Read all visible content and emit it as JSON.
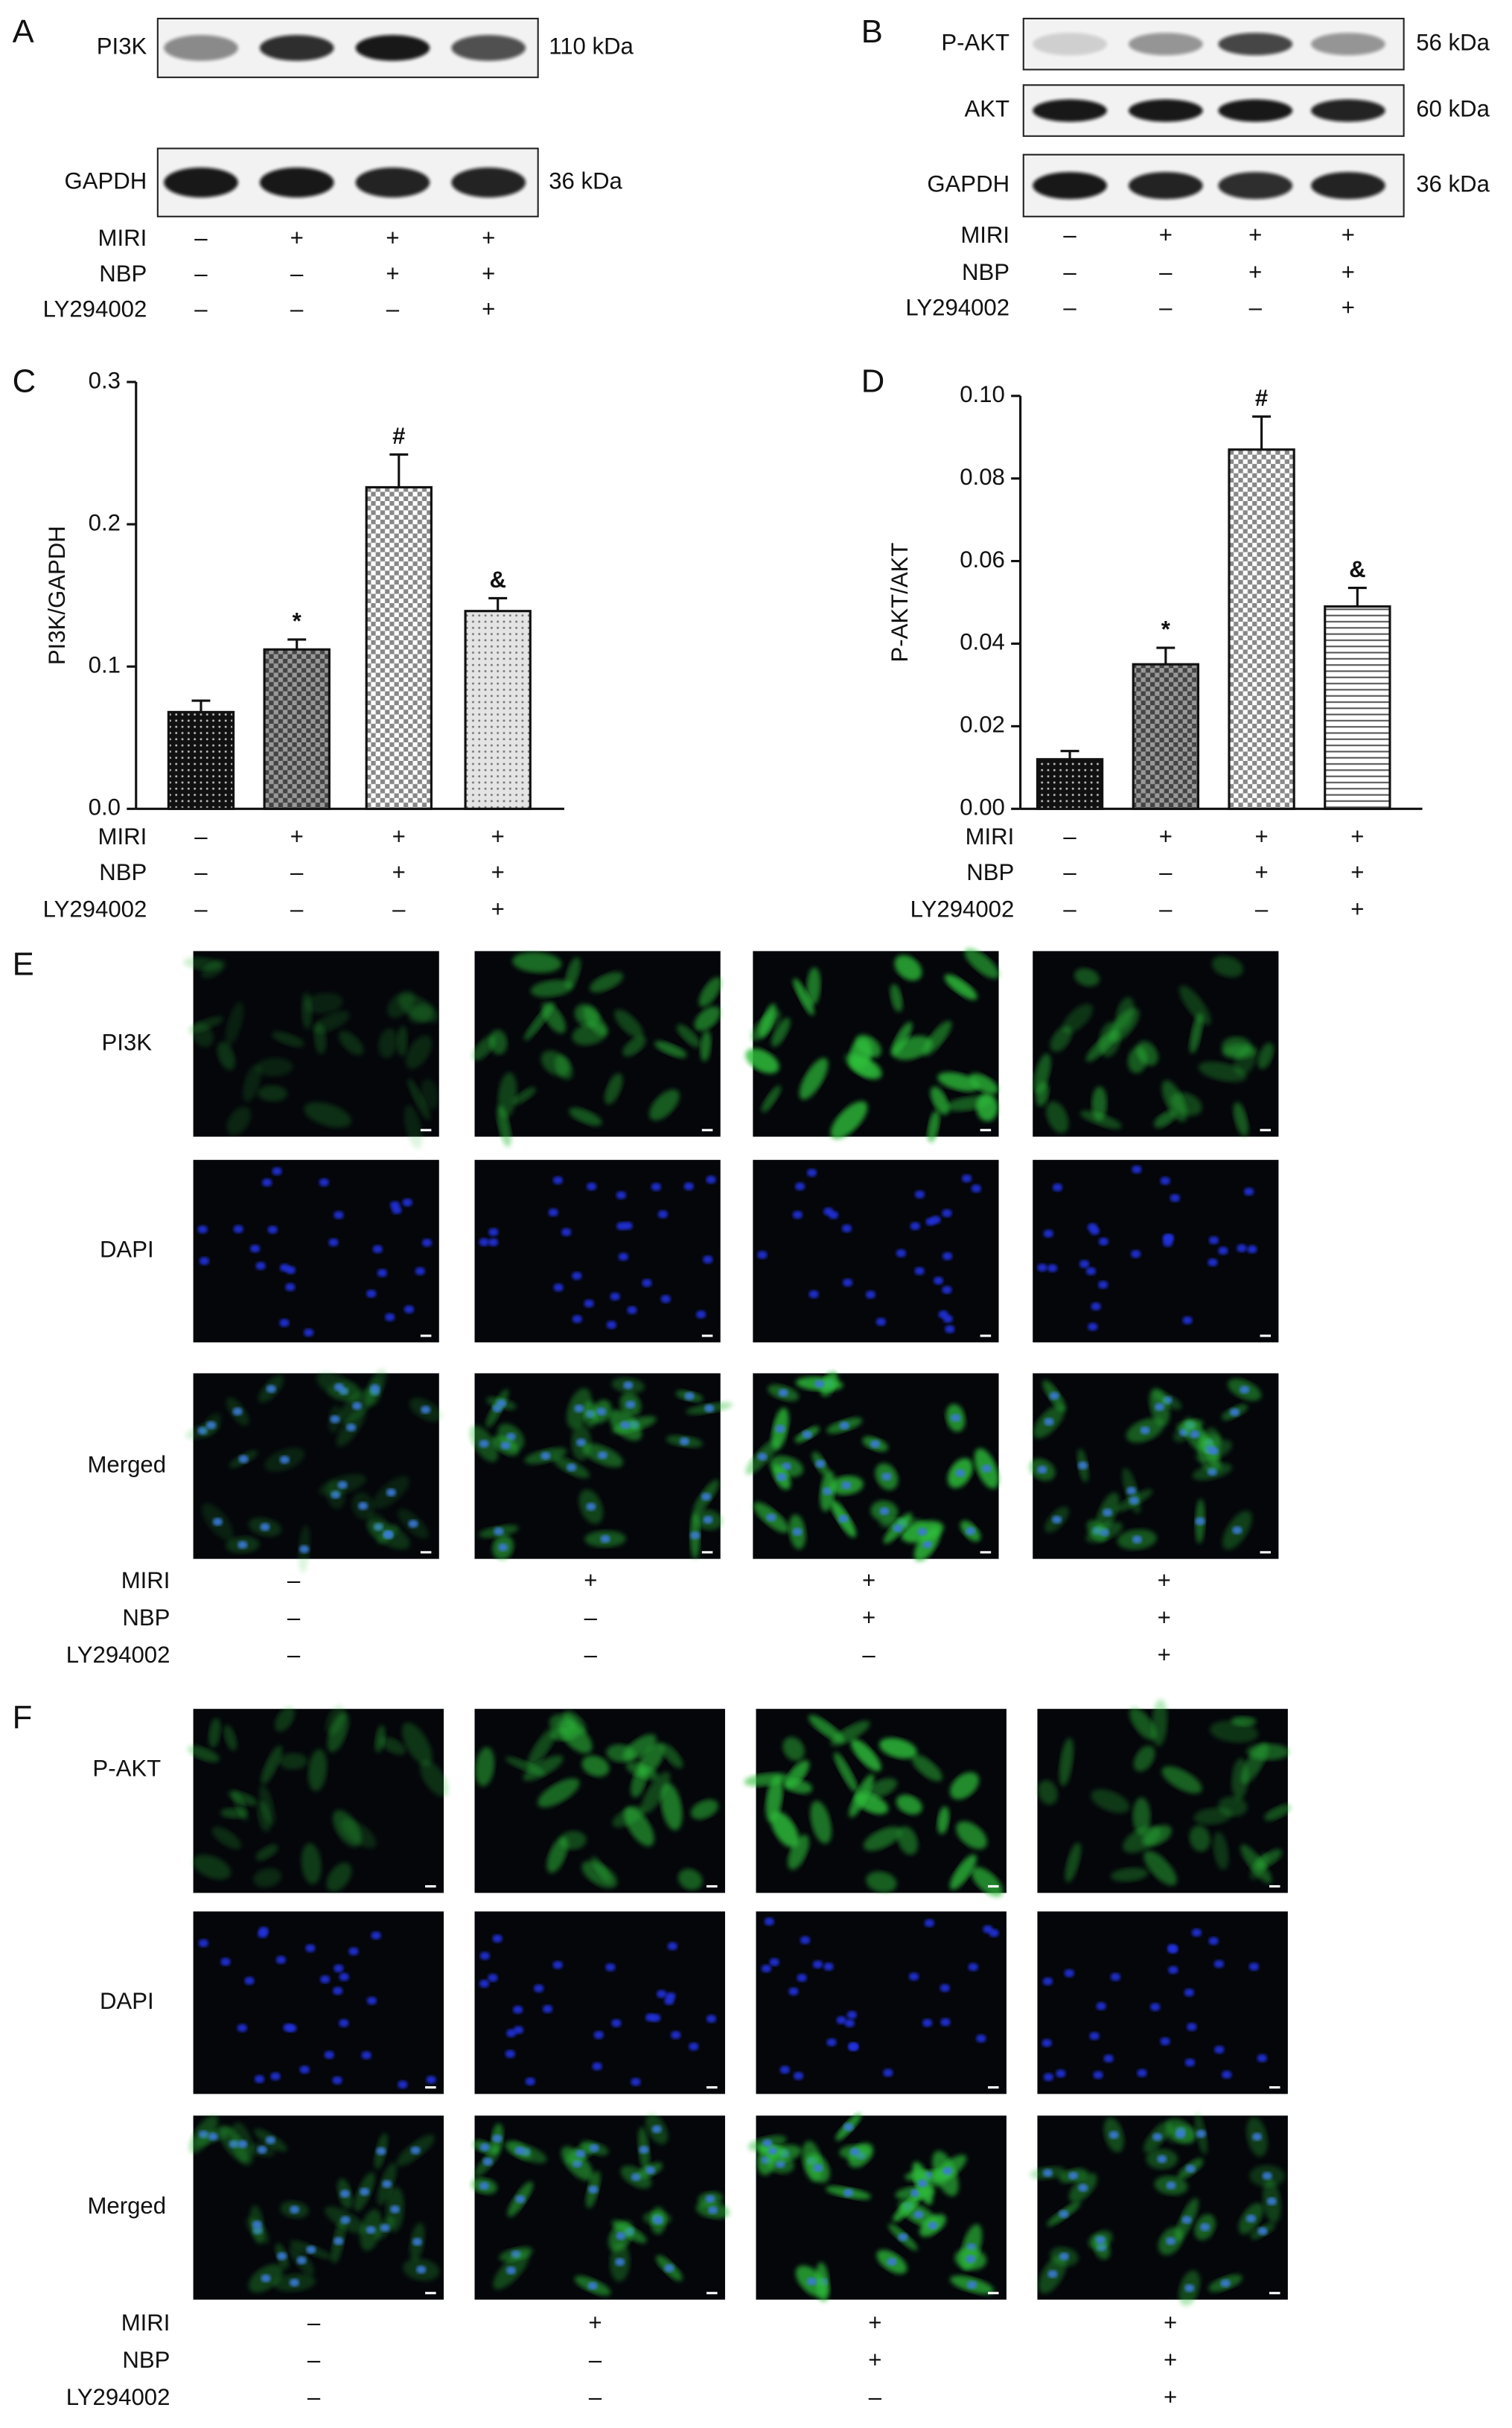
{
  "panels": {
    "A": {
      "label": "A",
      "blots": [
        {
          "name": "PI3K",
          "size": "110 kDa"
        },
        {
          "name": "GAPDH",
          "size": "36 kDa"
        }
      ],
      "conditions": [
        {
          "name": "MIRI",
          "signs": [
            "–",
            "+",
            "+",
            "+"
          ]
        },
        {
          "name": "NBP",
          "signs": [
            "–",
            "–",
            "+",
            "+"
          ]
        },
        {
          "name": "LY294002",
          "signs": [
            "–",
            "–",
            "–",
            "+"
          ]
        }
      ]
    },
    "B": {
      "label": "B",
      "blots": [
        {
          "name": "P-AKT",
          "size": "56 kDa"
        },
        {
          "name": "AKT",
          "size": "60 kDa"
        },
        {
          "name": "GAPDH",
          "size": "36 kDa"
        }
      ],
      "conditions": [
        {
          "name": "MIRI",
          "signs": [
            "–",
            "+",
            "+",
            "+"
          ]
        },
        {
          "name": "NBP",
          "signs": [
            "–",
            "–",
            "+",
            "+"
          ]
        },
        {
          "name": "LY294002",
          "signs": [
            "–",
            "–",
            "–",
            "+"
          ]
        }
      ]
    },
    "E": {
      "label": "E",
      "rows": [
        "PI3K",
        "DAPI",
        "Merged"
      ],
      "conditions": [
        {
          "name": "MIRI",
          "signs": [
            "–",
            "+",
            "+",
            "+"
          ]
        },
        {
          "name": "NBP",
          "signs": [
            "–",
            "–",
            "+",
            "+"
          ]
        },
        {
          "name": "LY294002",
          "signs": [
            "–",
            "–",
            "–",
            "+"
          ]
        }
      ]
    },
    "F": {
      "label": "F",
      "rows": [
        "P-AKT",
        "DAPI",
        "Merged"
      ],
      "conditions": [
        {
          "name": "MIRI",
          "signs": [
            "–",
            "+",
            "+",
            "+"
          ]
        },
        {
          "name": "NBP",
          "signs": [
            "–",
            "–",
            "+",
            "+"
          ]
        },
        {
          "name": "LY294002",
          "signs": [
            "–",
            "–",
            "–",
            "+"
          ]
        }
      ]
    }
  },
  "chart_data": [
    {
      "type": "bar",
      "panel": "C",
      "ylabel": "PI3K/GAPDH",
      "values": [
        0.068,
        0.112,
        0.226,
        0.139
      ],
      "errors": [
        0.008,
        0.007,
        0.023,
        0.009
      ],
      "annotations": [
        null,
        "*",
        "#",
        "&"
      ],
      "ylim": [
        0,
        0.3
      ],
      "yticks": [
        {
          "value": 0,
          "label": "0.0"
        },
        0.1,
        0.2,
        0.3
      ],
      "conditions": [
        {
          "name": "MIRI",
          "signs": [
            "–",
            "+",
            "+",
            "+"
          ]
        },
        {
          "name": "NBP",
          "signs": [
            "–",
            "–",
            "+",
            "+"
          ]
        },
        {
          "name": "LY294002",
          "signs": [
            "–",
            "–",
            "–",
            "+"
          ]
        }
      ]
    },
    {
      "type": "bar",
      "panel": "D",
      "ylabel": "P-AKT/AKT",
      "values": [
        0.012,
        0.035,
        0.087,
        0.049
      ],
      "errors": [
        0.002,
        0.004,
        0.008,
        0.0045
      ],
      "annotations": [
        null,
        "*",
        "#",
        "&"
      ],
      "ylim": [
        0,
        0.1
      ],
      "yticks": [
        {
          "value": 0,
          "label": "0.00"
        },
        0.02,
        0.04,
        0.06,
        0.08,
        {
          "value": 0.1,
          "label": "0.10"
        }
      ],
      "conditions": [
        {
          "name": "MIRI",
          "signs": [
            "–",
            "+",
            "+",
            "+"
          ]
        },
        {
          "name": "NBP",
          "signs": [
            "–",
            "–",
            "+",
            "+"
          ]
        },
        {
          "name": "LY294002",
          "signs": [
            "–",
            "–",
            "–",
            "+"
          ]
        }
      ]
    }
  ]
}
